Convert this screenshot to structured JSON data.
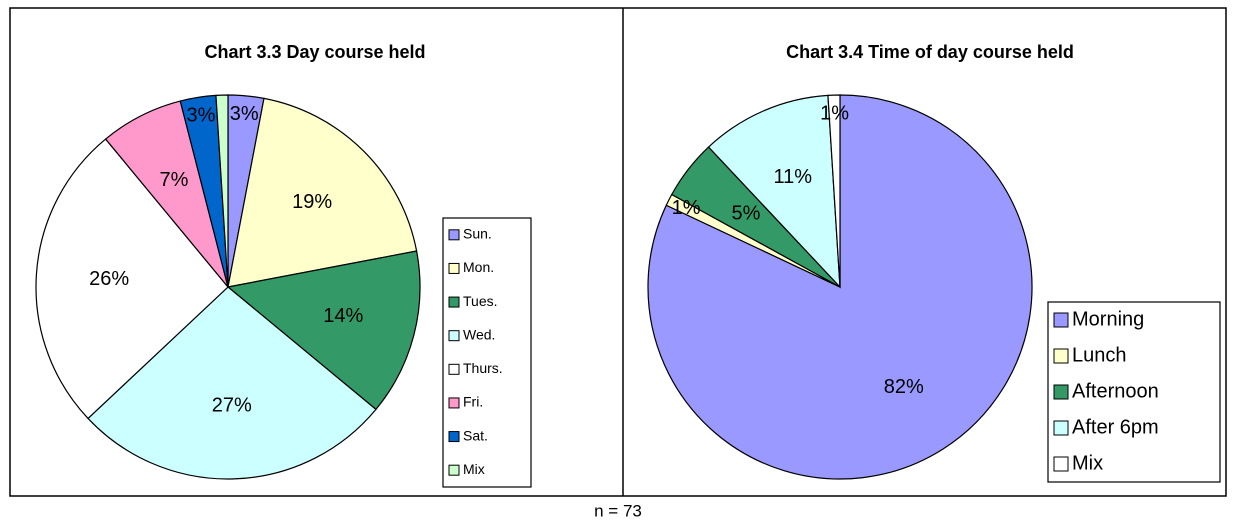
{
  "chart_data": [
    {
      "type": "pie",
      "title": "Chart 3.3 Day course held",
      "categories": [
        "Sun.",
        "Mon.",
        "Tues.",
        "Wed.",
        "Thurs.",
        "Fri.",
        "Sat.",
        "Mix"
      ],
      "values": [
        3,
        19,
        14,
        27,
        26,
        7,
        3,
        1
      ],
      "value_labels": [
        "3%",
        "19%",
        "14%",
        "27%",
        "26%",
        "7%",
        "3%",
        null
      ],
      "colors": [
        "#9999ff",
        "#ffffcc",
        "#339966",
        "#ccffff",
        "#ffffff",
        "#ff99cc",
        "#0066cc",
        "#ccffcc"
      ],
      "legend": "right"
    },
    {
      "type": "pie",
      "title": "Chart 3.4 Time of day course held",
      "categories": [
        "Morning",
        "Lunch",
        "Afternoon",
        "After 6pm",
        "Mix"
      ],
      "values": [
        82,
        1,
        5,
        11,
        1
      ],
      "value_labels": [
        "82%",
        "1%",
        "5%",
        "11%",
        "1%"
      ],
      "colors": [
        "#9999ff",
        "#ffffcc",
        "#339966",
        "#ccffff",
        "#ffffff"
      ],
      "legend": "bottom-right"
    }
  ],
  "note": "n = 73"
}
